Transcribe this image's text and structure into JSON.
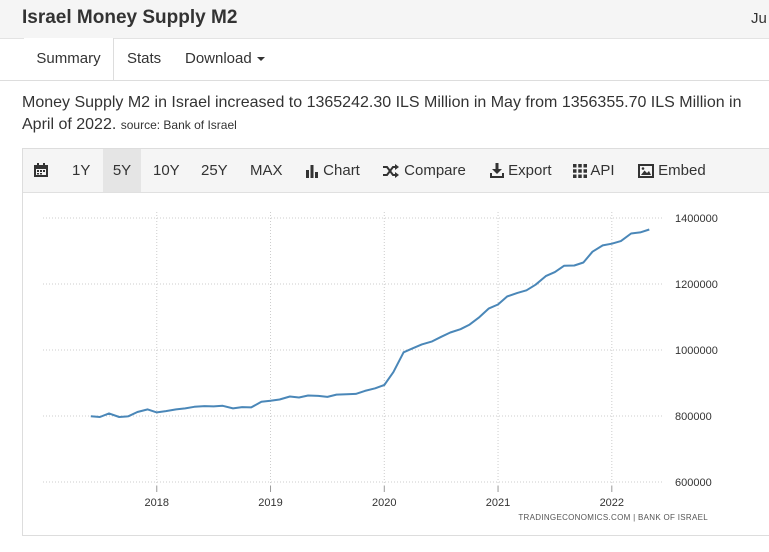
{
  "header": {
    "title": "Israel Money Supply M2",
    "right_text": "Ju"
  },
  "tabs": [
    {
      "label": "Summary"
    },
    {
      "label": "Stats"
    },
    {
      "label": "Download"
    }
  ],
  "summary": {
    "line1": "Money Supply M2 in Israel increased to 1365242.30 ILS Million in May from 1356355.70 ILS Million in",
    "line2": "April of 2022.",
    "source": "source: Bank of Israel"
  },
  "toolbar": {
    "ranges": [
      "1Y",
      "5Y",
      "10Y",
      "25Y",
      "MAX"
    ],
    "active_range": "5Y",
    "chart_label": "Chart",
    "compare_label": "Compare",
    "export_label": "Export",
    "api_label": "API",
    "embed_label": "Embed",
    "icons": [
      "calendar-icon",
      "bar-chart-icon",
      "shuffle-icon",
      "download-icon",
      "grid-icon",
      "image-icon"
    ]
  },
  "colors": {
    "line": "#4a87b8",
    "grid": "#cccccc",
    "text": "#333333"
  },
  "chart_data": {
    "type": "line",
    "title": "",
    "xlabel": "",
    "ylabel": "",
    "x_ticks": [
      "2018",
      "2019",
      "2020",
      "2021",
      "2022"
    ],
    "y_ticks": [
      "600000",
      "800000",
      "1000000",
      "1200000",
      "1400000"
    ],
    "ylim": [
      600000,
      1400000
    ],
    "xlim": [
      2017.5,
      2022.5
    ],
    "grid": true,
    "watermark": "TRADINGECONOMICS.COM  |  BANK OF ISRAEL",
    "series": [
      {
        "name": "",
        "x": [
          2017.42,
          2017.5,
          2017.58,
          2017.67,
          2017.75,
          2017.83,
          2017.92,
          2018.0,
          2018.08,
          2018.17,
          2018.25,
          2018.33,
          2018.42,
          2018.5,
          2018.58,
          2018.67,
          2018.75,
          2018.83,
          2018.92,
          2019.0,
          2019.08,
          2019.17,
          2019.25,
          2019.33,
          2019.42,
          2019.5,
          2019.58,
          2019.67,
          2019.75,
          2019.83,
          2019.92,
          2020.0,
          2020.08,
          2020.17,
          2020.25,
          2020.33,
          2020.42,
          2020.5,
          2020.58,
          2020.67,
          2020.75,
          2020.83,
          2020.92,
          2021.0,
          2021.08,
          2021.17,
          2021.25,
          2021.33,
          2021.42,
          2021.5,
          2021.58,
          2021.67,
          2021.75,
          2021.83,
          2021.92,
          2022.0,
          2022.08,
          2022.17,
          2022.25,
          2022.33
        ],
        "values": [
          799000,
          797000,
          808000,
          797000,
          799000,
          812000,
          820000,
          811000,
          815000,
          820000,
          823000,
          828000,
          830000,
          829000,
          831000,
          823000,
          827000,
          826000,
          843000,
          846000,
          850000,
          859000,
          856000,
          862000,
          861000,
          858000,
          865000,
          866000,
          867000,
          876000,
          884000,
          894000,
          933000,
          993000,
          1005000,
          1017000,
          1026000,
          1040000,
          1053000,
          1063000,
          1077000,
          1098000,
          1126000,
          1138000,
          1162000,
          1173000,
          1181000,
          1198000,
          1224000,
          1236000,
          1255000,
          1256000,
          1265000,
          1298000,
          1317000,
          1322000,
          1330000,
          1353000,
          1356356,
          1365242
        ]
      }
    ]
  }
}
